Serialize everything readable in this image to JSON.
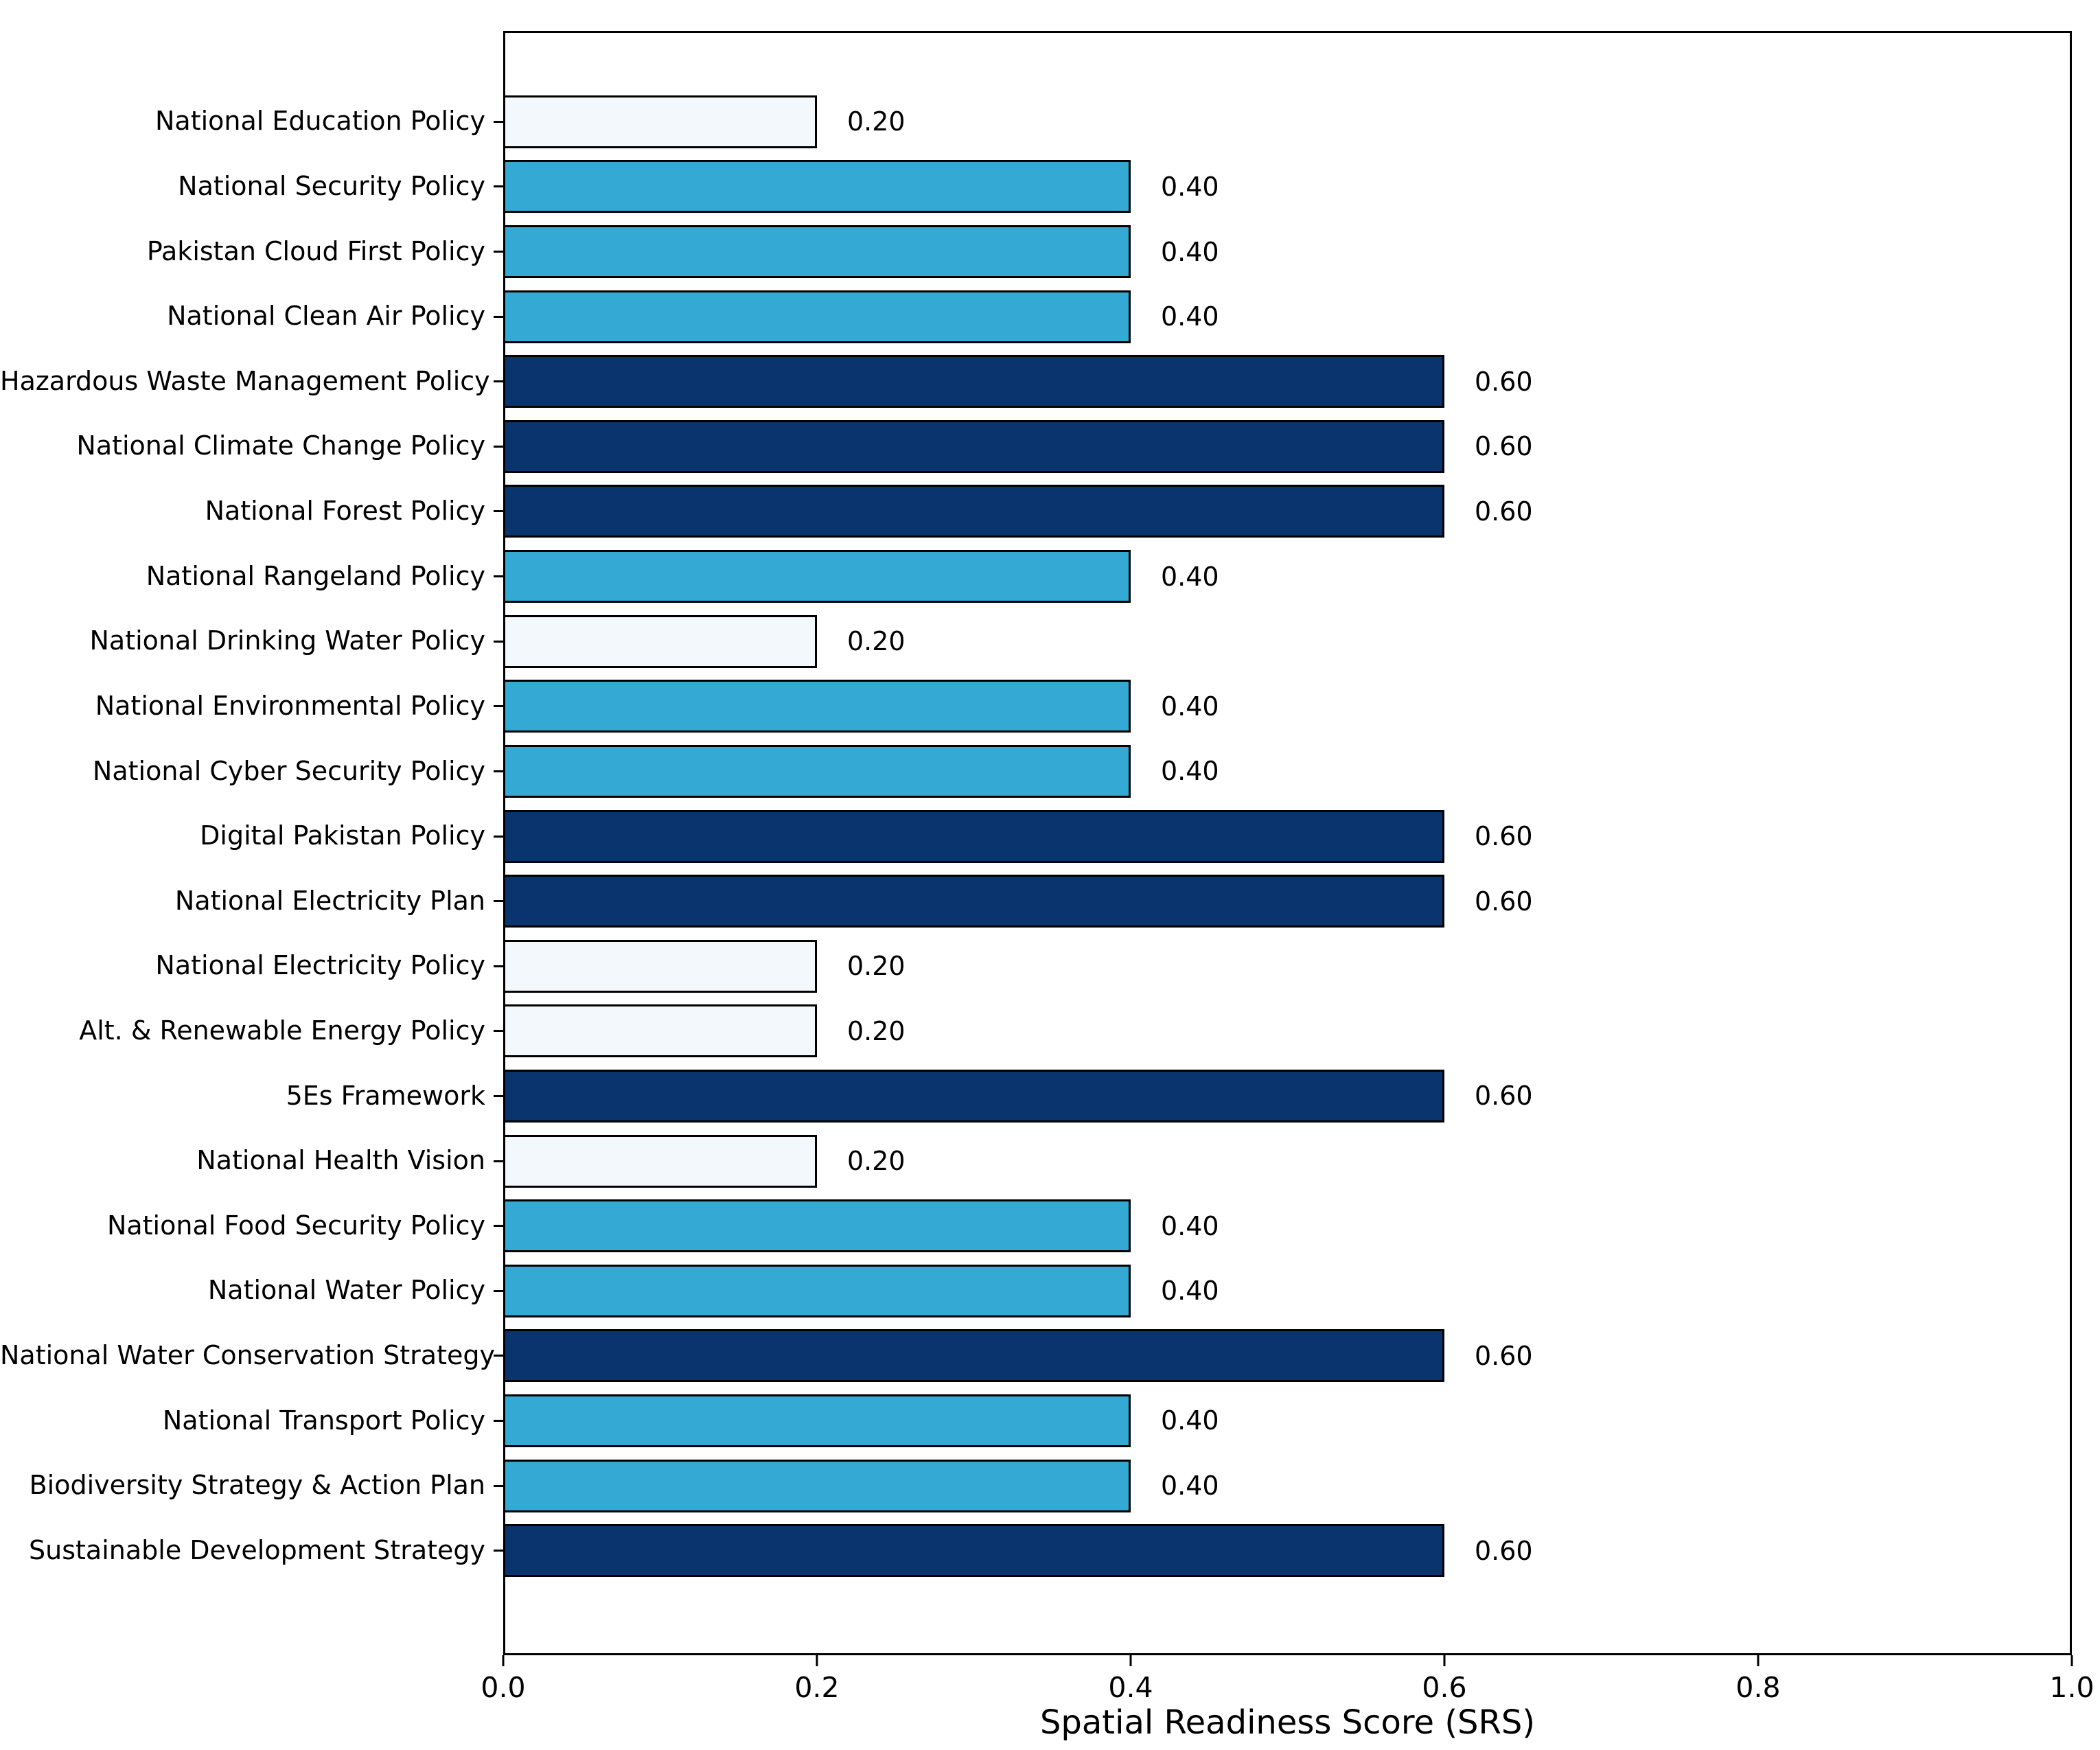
{
  "chart_data": {
    "type": "bar",
    "orientation": "horizontal",
    "xlabel": "Spatial Readiness Score (SRS)",
    "ylabel": "",
    "title": "",
    "xlim": [
      0.0,
      1.0
    ],
    "x_ticks": [
      0.0,
      0.2,
      0.4,
      0.6,
      0.8,
      1.0
    ],
    "x_tick_labels": [
      "0.0",
      "0.2",
      "0.4",
      "0.6",
      "0.8",
      "1.0"
    ],
    "grid": false,
    "legend": null,
    "categories": [
      "National Education Policy",
      "National Security Policy",
      "Pakistan Cloud First Policy",
      "National Clean Air Policy",
      "Hazardous Waste Management Policy",
      "National Climate Change Policy",
      "National Forest Policy",
      "National Rangeland Policy",
      "National Drinking Water Policy",
      "National Environmental Policy",
      "National Cyber Security Policy",
      "Digital Pakistan Policy",
      "National Electricity Plan",
      "National Electricity Policy",
      "Alt. & Renewable Energy Policy",
      "5Es Framework",
      "National Health Vision",
      "National Food Security Policy",
      "National Water Policy",
      "National Water Conservation Strategy",
      "National Transport Policy",
      "Biodiversity Strategy & Action Plan",
      "Sustainable Development Strategy"
    ],
    "values": [
      0.2,
      0.4,
      0.4,
      0.4,
      0.6,
      0.6,
      0.6,
      0.4,
      0.2,
      0.4,
      0.4,
      0.6,
      0.6,
      0.2,
      0.2,
      0.6,
      0.2,
      0.4,
      0.4,
      0.6,
      0.4,
      0.4,
      0.6
    ],
    "value_label_format": "2dp",
    "colors": {
      "value_0_2": "#f3f8fc",
      "value_0_4": "#33a9d4",
      "value_0_6": "#0a346e",
      "bar_edge": "#000000",
      "axis": "#000000",
      "background": "#ffffff"
    }
  }
}
